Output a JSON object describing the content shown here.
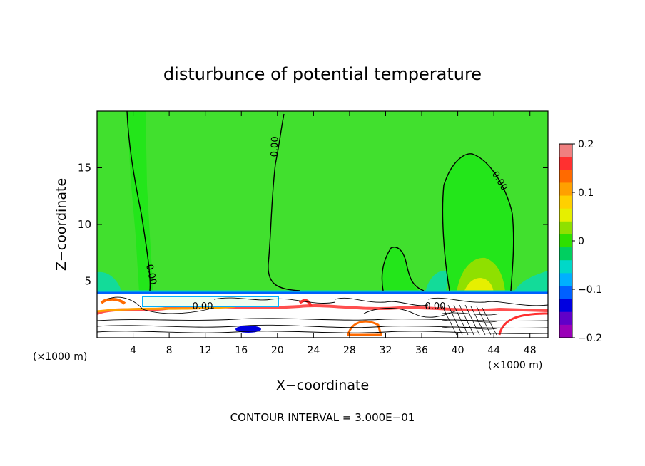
{
  "chart_data": {
    "type": "heatmap",
    "title": "disturbunce of potential temperature",
    "xlabel": "X−coordinate",
    "ylabel": "Z−coordinate",
    "x_unit_label": "(×1000 m)",
    "xlim": [
      0,
      50
    ],
    "ylim": [
      0,
      20
    ],
    "x_ticks": [
      4,
      8,
      12,
      16,
      20,
      24,
      28,
      32,
      36,
      40,
      44,
      48
    ],
    "y_ticks": [
      5,
      10,
      15
    ],
    "contour_label": "0.00",
    "contour_interval_text": "CONTOUR INTERVAL = 3.000E−01",
    "colorbar": {
      "ticks": [
        0.2,
        0.1,
        0,
        -0.1,
        -0.2
      ],
      "tick_labels": [
        "0.2",
        "0.1",
        "0",
        "−0.1",
        "−0.2"
      ],
      "colors": [
        "#f08080",
        "#ff3030",
        "#ff6a00",
        "#ffa000",
        "#ffd000",
        "#e6ef00",
        "#8fe000",
        "#2ee000",
        "#00cf60",
        "#00d8c8",
        "#00b0ff",
        "#0060ff",
        "#0000e0",
        "#6000c8",
        "#9a00b8"
      ]
    },
    "background_value": 0.02
  },
  "colors": {
    "field": "#41e02e",
    "inner": "#23e61a"
  }
}
